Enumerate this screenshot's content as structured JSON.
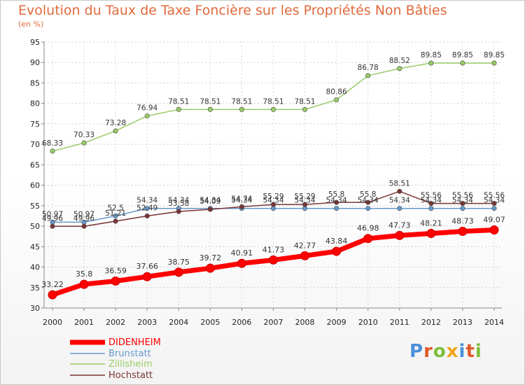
{
  "chart_data": {
    "type": "line",
    "title": "Evolution du Taux de Taxe Foncière sur les Propriétés Non Bâties",
    "subtitle": "(en %)",
    "x": [
      "2000",
      "2001",
      "2002",
      "2003",
      "2004",
      "2005",
      "2006",
      "2007",
      "2008",
      "2009",
      "2010",
      "2011",
      "2012",
      "2013",
      "2014"
    ],
    "ylim": [
      30,
      95
    ],
    "yticks": [
      30,
      35,
      40,
      45,
      50,
      55,
      60,
      65,
      70,
      75,
      80,
      85,
      90,
      95
    ],
    "grid": true,
    "series": [
      {
        "name": "DIDENHEIM",
        "color": "#ff0000",
        "values": [
          33.22,
          35.8,
          36.59,
          37.66,
          38.75,
          39.72,
          40.91,
          41.73,
          42.77,
          43.84,
          46.98,
          47.73,
          48.21,
          48.73,
          49.07
        ],
        "labels": [
          "33.22",
          "35.8",
          "36.59",
          "37.66",
          "38.75",
          "39.72",
          "40.91",
          "41.73",
          "42.77",
          "43.84",
          "46.98",
          "47.73",
          "48.21",
          "48.73",
          "49.07"
        ]
      },
      {
        "name": "Brunstatt",
        "color": "#6699cc",
        "values": [
          50.97,
          50.97,
          52.5,
          54.34,
          54.34,
          54.34,
          54.34,
          54.34,
          54.34,
          54.34,
          54.34,
          54.34,
          54.34,
          54.34,
          54.34
        ],
        "labels": [
          "50.97",
          "50.97",
          "52.5",
          "54.34",
          "54.34",
          "54.34",
          "54.34",
          "54.34",
          "54.34",
          "54.34",
          "54.34",
          "54.34",
          "54.34",
          "54.34",
          "54.34"
        ]
      },
      {
        "name": "Zillisheim",
        "color": "#99cc66",
        "values": [
          68.33,
          70.33,
          73.28,
          76.94,
          78.51,
          78.51,
          78.51,
          78.51,
          78.51,
          80.86,
          86.78,
          88.52,
          89.85,
          89.85,
          89.85
        ],
        "labels": [
          "68.33",
          "70.33",
          "73.28",
          "76.94",
          "78.51",
          "78.51",
          "78.51",
          "78.51",
          "78.51",
          "80.86",
          "86.78",
          "88.52",
          "89.85",
          "89.85",
          "89.85"
        ]
      },
      {
        "name": "Hochstatt",
        "color": "#7a3535",
        "values": [
          49.96,
          49.96,
          51.21,
          52.49,
          53.58,
          54.09,
          54.74,
          55.29,
          55.29,
          55.8,
          55.8,
          58.51,
          55.56,
          55.56,
          55.56
        ],
        "labels": [
          "49.96",
          "49.96",
          "51.21",
          "52.49",
          "53.58",
          "54.09",
          "54.74",
          "55.29",
          "55.29",
          "55.8",
          "55.8",
          "58.51",
          "55.56",
          "55.56",
          "55.56"
        ]
      }
    ],
    "legend_position": "bottom-left"
  },
  "logo": {
    "text": "Proxiti",
    "colors": [
      "#4a90d9",
      "#e05a2a",
      "#7bbf3a",
      "#f2a21c",
      "#4a90d9",
      "#e05a2a",
      "#7bbf3a"
    ]
  }
}
